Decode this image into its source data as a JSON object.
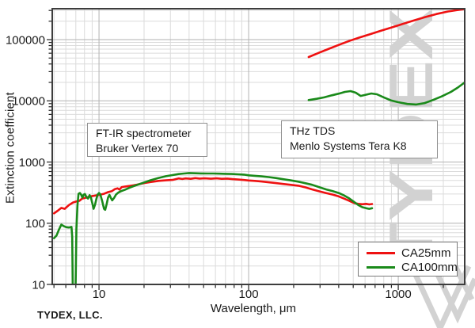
{
  "figure": {
    "footer_brand": "TYDEX, LLC.",
    "watermark_text": "TYDEX",
    "watermark_color": "#d2d2d2",
    "background": "#ffffff"
  },
  "chart_data": {
    "type": "line",
    "title": "",
    "xlabel": "Wavelength, μm",
    "ylabel": "Extinction coefficient",
    "xscale": "log",
    "yscale": "log",
    "xlim": [
      4.87,
      2780
    ],
    "ylim": [
      10,
      320000
    ],
    "grid": "log major+minor gridlines on both axes",
    "xticks": [
      {
        "value": 10,
        "label": "10"
      },
      {
        "value": 100,
        "label": "100"
      },
      {
        "value": 1000,
        "label": "1000"
      }
    ],
    "yticks": [
      {
        "value": 10,
        "label": "10"
      },
      {
        "value": 100,
        "label": "100"
      },
      {
        "value": 1000,
        "label": "1000"
      },
      {
        "value": 10000,
        "label": "10000"
      },
      {
        "value": 100000,
        "label": "100000"
      }
    ],
    "legend": {
      "position": "bottom-right",
      "items": [
        {
          "label": "CA25mm",
          "color": "#ee1111"
        },
        {
          "label": "CA100mm",
          "color": "#1a8a1a"
        }
      ]
    },
    "annotations": [
      {
        "id": "ftir",
        "lines": [
          "FT-IR spectrometer",
          "Bruker Vertex 70"
        ]
      },
      {
        "id": "thz",
        "lines": [
          "THz TDS",
          "Menlo Systems Tera K8"
        ]
      }
    ],
    "series": [
      {
        "name": "CA25mm",
        "color": "#ee1111",
        "segments": [
          [
            [
              5,
              145
            ],
            [
              5.3,
              160
            ],
            [
              5.6,
              178
            ],
            [
              5.9,
              172
            ],
            [
              6.3,
              198
            ],
            [
              6.7,
              218
            ],
            [
              7.1,
              228
            ],
            [
              7.4,
              232
            ],
            [
              7.7,
              252
            ],
            [
              8,
              258
            ],
            [
              8.6,
              272
            ],
            [
              9.2,
              280
            ],
            [
              10,
              290
            ],
            [
              10.8,
              303
            ],
            [
              11.5,
              322
            ],
            [
              12.2,
              335
            ],
            [
              12.8,
              362
            ],
            [
              13.3,
              372
            ],
            [
              13.7,
              355
            ],
            [
              14.2,
              390
            ],
            [
              15,
              398
            ],
            [
              16,
              406
            ],
            [
              17,
              416
            ],
            [
              18,
              428
            ],
            [
              20,
              452
            ],
            [
              22,
              470
            ],
            [
              25,
              492
            ],
            [
              28,
              502
            ],
            [
              31,
              510
            ],
            [
              34,
              540
            ],
            [
              36,
              528
            ],
            [
              38,
              540
            ],
            [
              41,
              532
            ],
            [
              44,
              546
            ],
            [
              47,
              536
            ],
            [
              51,
              542
            ],
            [
              56,
              533
            ],
            [
              61,
              541
            ],
            [
              66,
              531
            ],
            [
              72,
              536
            ],
            [
              78,
              526
            ],
            [
              85,
              518
            ],
            [
              93,
              509
            ],
            [
              100,
              500
            ],
            [
              110,
              492
            ],
            [
              122,
              481
            ],
            [
              136,
              466
            ],
            [
              152,
              452
            ],
            [
              170,
              438
            ],
            [
              192,
              424
            ],
            [
              215,
              410
            ],
            [
              240,
              385
            ],
            [
              265,
              358
            ],
            [
              295,
              333
            ],
            [
              330,
              311
            ],
            [
              365,
              294
            ],
            [
              400,
              274
            ],
            [
              435,
              252
            ],
            [
              470,
              233
            ],
            [
              505,
              214
            ],
            [
              540,
              207
            ],
            [
              575,
              204
            ],
            [
              610,
              207
            ],
            [
              640,
              203
            ],
            [
              668,
              206
            ]
          ],
          [
            [
              252,
              52000
            ],
            [
              300,
              62000
            ],
            [
              350,
              72000
            ],
            [
              400,
              82000
            ],
            [
              470,
              95000
            ],
            [
              550,
              108000
            ],
            [
              650,
              123000
            ],
            [
              760,
              139000
            ],
            [
              900,
              158000
            ],
            [
              1050,
              178000
            ],
            [
              1250,
              203000
            ],
            [
              1500,
              232000
            ],
            [
              1800,
              262000
            ],
            [
              2150,
              288000
            ],
            [
              2450,
              302000
            ],
            [
              2780,
              315000
            ]
          ]
        ]
      },
      {
        "name": "CA100mm",
        "color": "#1a8a1a",
        "segments": [
          [
            [
              5,
              57
            ],
            [
              5.2,
              63
            ],
            [
              5.4,
              79
            ],
            [
              5.6,
              95
            ],
            [
              5.8,
              90
            ],
            [
              6.05,
              86
            ],
            [
              6.3,
              85
            ],
            [
              6.55,
              87
            ],
            [
              6.62,
              60
            ],
            [
              6.68,
              9
            ],
            [
              6.98,
              9
            ],
            [
              7.06,
              80
            ],
            [
              7.18,
              200
            ],
            [
              7.3,
              303
            ],
            [
              7.45,
              312
            ],
            [
              7.6,
              293
            ],
            [
              7.75,
              262
            ],
            [
              7.9,
              293
            ],
            [
              8.05,
              300
            ],
            [
              8.25,
              266
            ],
            [
              8.45,
              253
            ],
            [
              8.65,
              288
            ],
            [
              8.85,
              258
            ],
            [
              9.05,
              205
            ],
            [
              9.2,
              172
            ],
            [
              9.4,
              200
            ],
            [
              9.6,
              248
            ],
            [
              9.8,
              295
            ],
            [
              10,
              312
            ],
            [
              10.2,
              296
            ],
            [
              10.5,
              230
            ],
            [
              10.8,
              172
            ],
            [
              11,
              166
            ],
            [
              11.25,
              205
            ],
            [
              11.5,
              262
            ],
            [
              11.75,
              290
            ],
            [
              12,
              260
            ],
            [
              12.25,
              236
            ],
            [
              12.6,
              258
            ],
            [
              13,
              295
            ],
            [
              13.5,
              318
            ],
            [
              14,
              333
            ],
            [
              15,
              354
            ],
            [
              16,
              381
            ],
            [
              17,
              403
            ],
            [
              18,
              423
            ],
            [
              20,
              463
            ],
            [
              22,
              502
            ],
            [
              25,
              549
            ],
            [
              28,
              586
            ],
            [
              31,
              612
            ],
            [
              34,
              636
            ],
            [
              37,
              650
            ],
            [
              40,
              660
            ],
            [
              44,
              656
            ],
            [
              48,
              652
            ],
            [
              53,
              650
            ],
            [
              58,
              650
            ],
            [
              64,
              646
            ],
            [
              70,
              642
            ],
            [
              77,
              637
            ],
            [
              85,
              630
            ],
            [
              93,
              623
            ],
            [
              100,
              607
            ],
            [
              110,
              596
            ],
            [
              122,
              583
            ],
            [
              136,
              567
            ],
            [
              152,
              547
            ],
            [
              170,
              524
            ],
            [
              192,
              501
            ],
            [
              215,
              477
            ],
            [
              240,
              450
            ],
            [
              265,
              425
            ],
            [
              295,
              390
            ],
            [
              330,
              357
            ],
            [
              365,
              335
            ],
            [
              400,
              312
            ],
            [
              435,
              284
            ],
            [
              470,
              255
            ],
            [
              505,
              224
            ],
            [
              540,
              199
            ],
            [
              575,
              183
            ],
            [
              610,
              176
            ],
            [
              640,
              172
            ],
            [
              668,
              176
            ]
          ],
          [
            [
              252,
              10300
            ],
            [
              285,
              10800
            ],
            [
              320,
              11400
            ],
            [
              360,
              12300
            ],
            [
              400,
              13100
            ],
            [
              440,
              14000
            ],
            [
              480,
              14400
            ],
            [
              520,
              13600
            ],
            [
              560,
              12000
            ],
            [
              610,
              12600
            ],
            [
              660,
              13200
            ],
            [
              720,
              12800
            ],
            [
              800,
              11400
            ],
            [
              900,
              10100
            ],
            [
              1000,
              9500
            ],
            [
              1150,
              8900
            ],
            [
              1320,
              8700
            ],
            [
              1500,
              9200
            ],
            [
              1700,
              10300
            ],
            [
              1950,
              11800
            ],
            [
              2250,
              14000
            ],
            [
              2500,
              16500
            ],
            [
              2780,
              20000
            ]
          ]
        ]
      }
    ]
  }
}
